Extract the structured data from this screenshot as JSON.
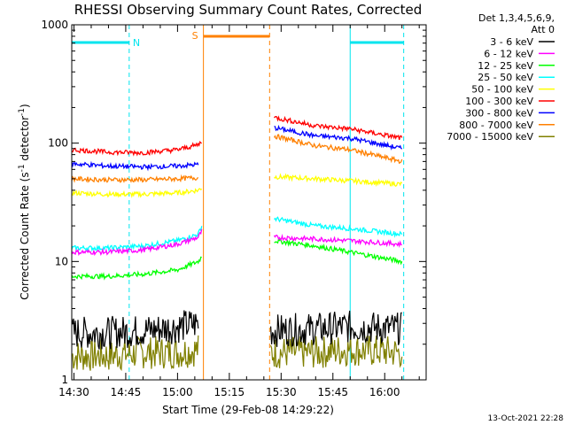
{
  "chart_data": {
    "type": "line",
    "title": "RHESSI Observing Summary Count Rates, Corrected",
    "xlabel": "Start Time (29-Feb-08 14:29:22)",
    "ylabel": "Corrected Count Rate (s",
    "ylabel_sup": "-1",
    "ylabel_mid": " detector",
    "ylabel_end": ")",
    "footer": "13-Oct-2021 22:28",
    "legend_header": [
      "Det 1,3,4,5,6,9,",
      "Att 0"
    ],
    "x_ticks": [
      "14:30",
      "14:45",
      "15:00",
      "15:15",
      "15:30",
      "15:45",
      "16:00"
    ],
    "x_range": [
      "14:29:22",
      "16:12:00"
    ],
    "y_ticks": [
      "1",
      "10",
      "100",
      "1000"
    ],
    "y_scale": "log",
    "y_range": [
      1,
      1000
    ],
    "annotations": {
      "night_label": "N",
      "saa_label": "S",
      "night_segments": [
        [
          "14:29:22",
          "14:46:00"
        ],
        [
          "15:50:00",
          "16:05:30"
        ]
      ],
      "saa_segments": [
        [
          "15:07:30",
          "15:26:40"
        ]
      ]
    },
    "series": [
      {
        "name": "3 - 6 keV",
        "color": "#000000",
        "segments": [
          {
            "x": [
              "14:29:22",
              "14:40",
              "14:50",
              "15:00",
              "15:06"
            ],
            "y": [
              2.5,
              2.5,
              2.6,
              2.8,
              3.0
            ]
          },
          {
            "x": [
              "15:27",
              "15:40",
              "15:50",
              "16:05"
            ],
            "y": [
              2.6,
              2.7,
              2.8,
              2.7
            ]
          }
        ]
      },
      {
        "name": "6 - 12 keV",
        "color": "#ff00ff",
        "segments": [
          {
            "x": [
              "14:29:22",
              "14:40",
              "14:50",
              "15:00",
              "15:06",
              "15:07"
            ],
            "y": [
              12,
              12,
              12.5,
              14,
              16,
              18
            ]
          },
          {
            "x": [
              "15:28",
              "15:40",
              "15:50",
              "16:05"
            ],
            "y": [
              16,
              15.5,
              15,
              14
            ]
          }
        ]
      },
      {
        "name": "12 - 25 keV",
        "color": "#00ff00",
        "segments": [
          {
            "x": [
              "14:29:22",
              "14:40",
              "14:50",
              "15:00",
              "15:06",
              "15:07"
            ],
            "y": [
              7.5,
              7.5,
              7.8,
              8.5,
              10,
              11
            ]
          },
          {
            "x": [
              "15:28",
              "15:40",
              "15:50",
              "16:05"
            ],
            "y": [
              15,
              13.5,
              12,
              10
            ]
          }
        ]
      },
      {
        "name": "25 - 50 keV",
        "color": "#00ffff",
        "segments": [
          {
            "x": [
              "14:29:22",
              "14:40",
              "14:50",
              "15:00",
              "15:06",
              "15:07"
            ],
            "y": [
              13,
              13,
              13.5,
              15,
              17,
              20
            ]
          },
          {
            "x": [
              "15:28",
              "15:40",
              "15:50",
              "16:05"
            ],
            "y": [
              23,
              20,
              19,
              17
            ]
          }
        ]
      },
      {
        "name": "50 - 100 keV",
        "color": "#ffff00",
        "segments": [
          {
            "x": [
              "14:29:22",
              "14:40",
              "14:50",
              "15:00",
              "15:06",
              "15:07"
            ],
            "y": [
              38,
              37,
              37,
              38,
              40,
              42
            ]
          },
          {
            "x": [
              "15:28",
              "15:40",
              "15:50",
              "16:05"
            ],
            "y": [
              52,
              50,
              48,
              45
            ]
          }
        ]
      },
      {
        "name": "100 - 300 keV",
        "color": "#ff0000",
        "segments": [
          {
            "x": [
              "14:29:22",
              "14:40",
              "14:50",
              "15:00",
              "15:06",
              "15:07"
            ],
            "y": [
              88,
              84,
              83,
              88,
              97,
              104
            ]
          },
          {
            "x": [
              "15:28",
              "15:40",
              "15:50",
              "16:05"
            ],
            "y": [
              165,
              140,
              132,
              110
            ]
          }
        ]
      },
      {
        "name": "300 - 800 keV",
        "color": "#0000ff",
        "segments": [
          {
            "x": [
              "14:29:22",
              "14:40",
              "14:50",
              "15:00",
              "15:06"
            ],
            "y": [
              67,
              64,
              63,
              64,
              66
            ]
          },
          {
            "x": [
              "15:28",
              "15:40",
              "15:50",
              "16:05"
            ],
            "y": [
              135,
              115,
              110,
              90
            ]
          }
        ]
      },
      {
        "name": "800 - 7000 keV",
        "color": "#ff8000",
        "segments": [
          {
            "x": [
              "14:29:22",
              "14:40",
              "14:50",
              "15:00",
              "15:06"
            ],
            "y": [
              50,
              49,
              49,
              50,
              51
            ]
          },
          {
            "x": [
              "15:28",
              "15:40",
              "15:50",
              "16:05"
            ],
            "y": [
              115,
              95,
              88,
              70
            ]
          }
        ]
      },
      {
        "name": "7000 - 15000 keV",
        "color": "#808000",
        "segments": [
          {
            "x": [
              "14:29:22",
              "14:40",
              "14:50",
              "15:00",
              "15:06"
            ],
            "y": [
              1.6,
              1.6,
              1.7,
              1.7,
              1.8
            ]
          },
          {
            "x": [
              "15:27",
              "15:40",
              "15:50",
              "16:05"
            ],
            "y": [
              1.7,
              1.7,
              1.8,
              1.7
            ]
          }
        ]
      }
    ]
  }
}
